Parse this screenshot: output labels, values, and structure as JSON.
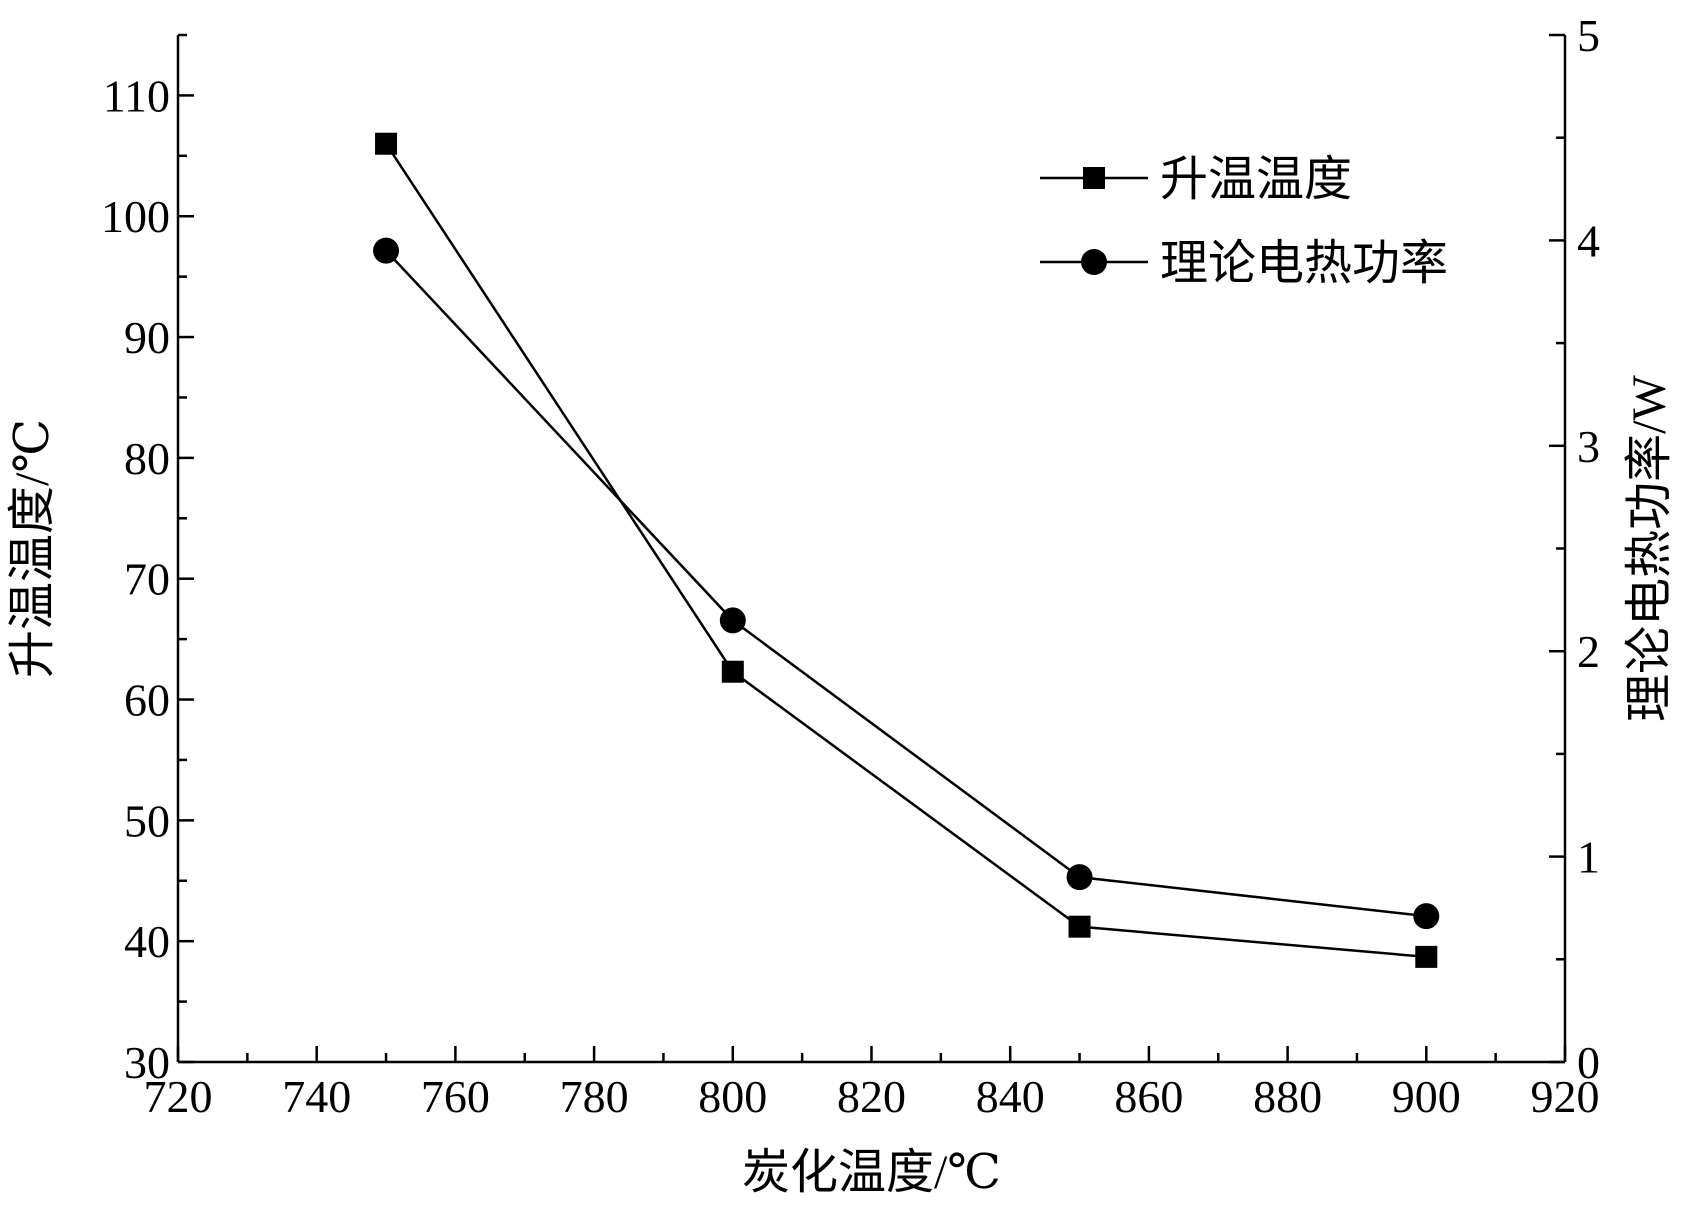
{
  "chart_data": {
    "type": "line",
    "xlabel": "炭化温度/℃",
    "ylabel_left": "升温温度/℃",
    "ylabel_right": "理论电热功率/W",
    "xlim": [
      720,
      920
    ],
    "ylim_left": [
      30,
      115
    ],
    "ylim_right": [
      0,
      5
    ],
    "x_ticks": [
      720,
      740,
      760,
      780,
      800,
      820,
      840,
      860,
      880,
      900,
      920
    ],
    "y_left_ticks": [
      30,
      40,
      50,
      60,
      70,
      80,
      90,
      100,
      110
    ],
    "y_right_ticks": [
      0,
      1,
      2,
      3,
      4,
      5
    ],
    "grid": false,
    "legend_position": "top-right",
    "series": [
      {
        "name": "升温温度",
        "axis": "left",
        "marker": "square",
        "x": [
          750,
          800,
          850,
          900
        ],
        "y": [
          106,
          62.3,
          41.2,
          38.7
        ]
      },
      {
        "name": "理论电热功率",
        "axis": "right",
        "marker": "circle",
        "x": [
          750,
          800,
          850,
          900
        ],
        "y": [
          3.95,
          2.15,
          0.9,
          0.71
        ]
      }
    ]
  }
}
